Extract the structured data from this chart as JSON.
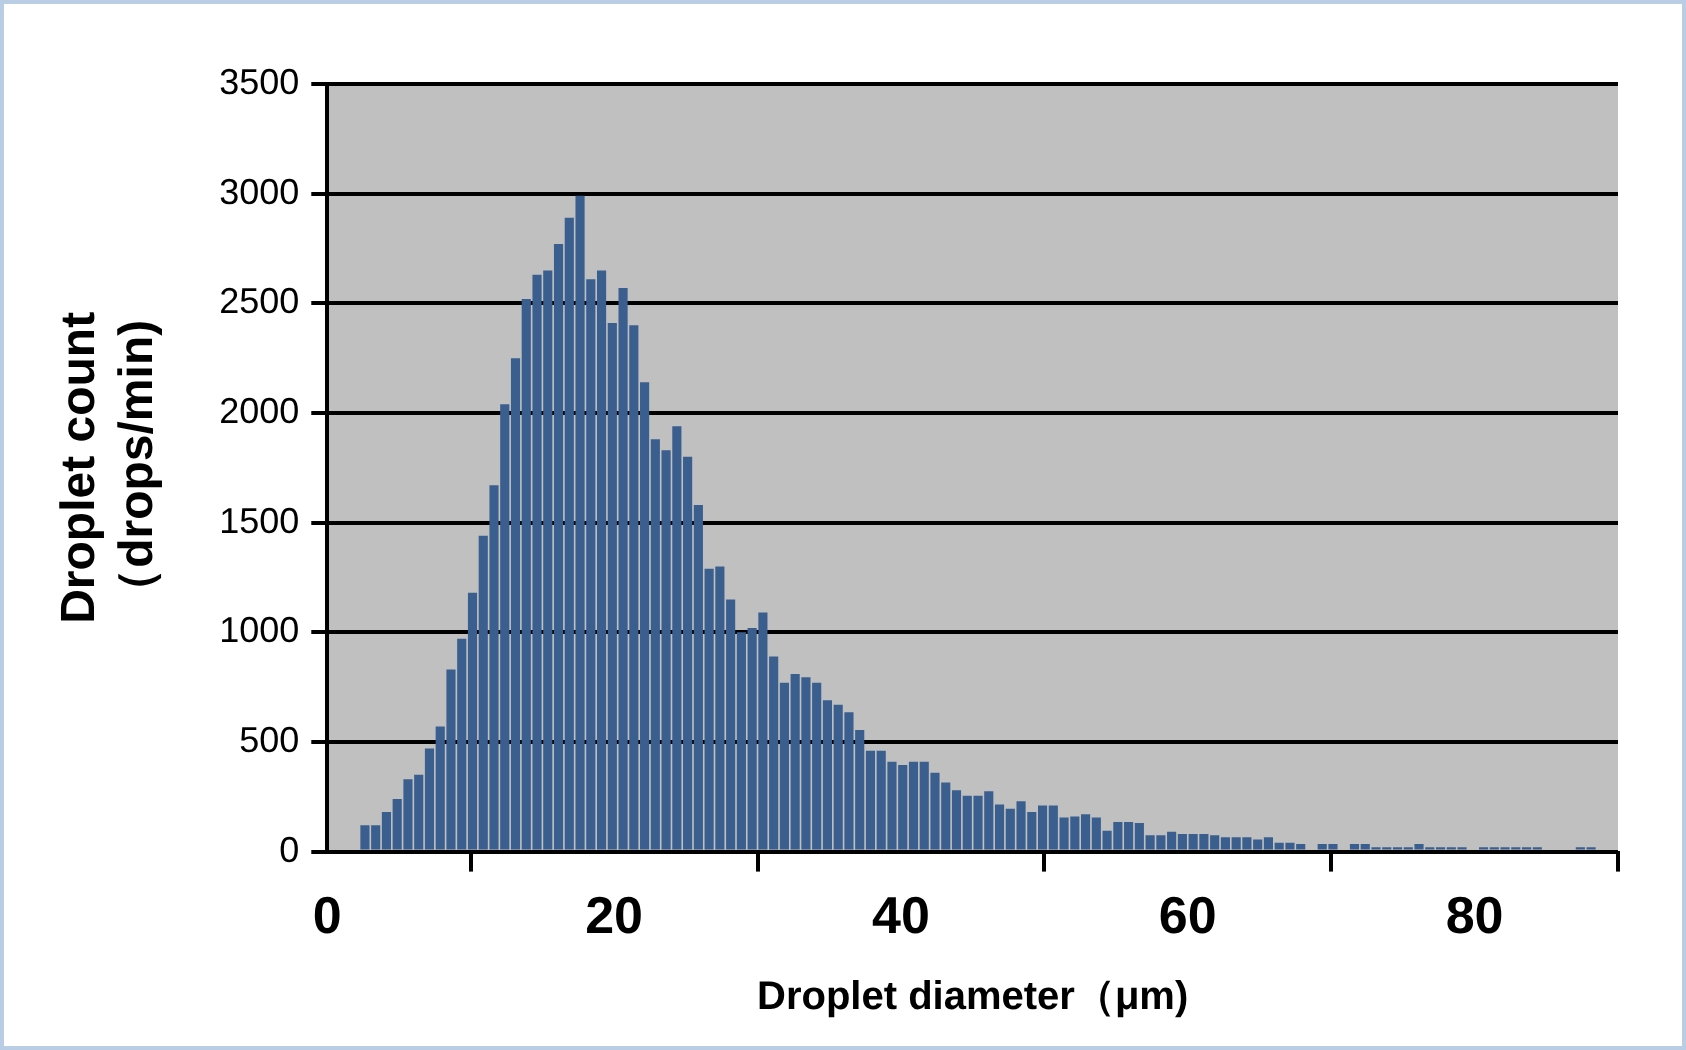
{
  "chart_data": {
    "type": "histogram",
    "xlabel": "Droplet diameter（μm)",
    "ylabel": "Droplet count\n（drops/min)",
    "bins": [
      1.5,
      2.25,
      3,
      3.75,
      4.5,
      5.25,
      6,
      6.75,
      7.5,
      8.25,
      9,
      9.75,
      10.5,
      11.25,
      12,
      12.75,
      13.5,
      14.25,
      15,
      15.75,
      16.5,
      17.25,
      18,
      18.75,
      19.5,
      20.25,
      21,
      21.75,
      22.5,
      23.25,
      24,
      24.75,
      25.5,
      26.25,
      27,
      27.75,
      28.5,
      29.25,
      30,
      30.75,
      31.5,
      32.25,
      33,
      33.75,
      34.5,
      35.25,
      36,
      36.75,
      37.5,
      38.25,
      39,
      39.75,
      40.5,
      41.25,
      42,
      42.75,
      43.5,
      44.25,
      45,
      45.75,
      46.5,
      47.25,
      48,
      48.75,
      49.5,
      50.25,
      51,
      51.75,
      52.5,
      53.25,
      54,
      54.75,
      55.5,
      56.25,
      57,
      57.75,
      58.5,
      59.25,
      60,
      60.75,
      61.5,
      62.25,
      63,
      63.75,
      64.5,
      65.25,
      66,
      66.75,
      67.5,
      68.25,
      69,
      69.75,
      70.5,
      71.25,
      72,
      72.75,
      73.5,
      74.25,
      75,
      75.75,
      76.5,
      77.25,
      78,
      78.75,
      79.5,
      80.25,
      81,
      81.75,
      82.5,
      83.25,
      84,
      84.75,
      85.5,
      86.25,
      87,
      87.75,
      88.5
    ],
    "values": [
      10,
      120,
      120,
      180,
      240,
      330,
      350,
      470,
      570,
      830,
      970,
      1180,
      1440,
      1670,
      2040,
      2250,
      2520,
      2630,
      2650,
      2770,
      2890,
      2990,
      2610,
      2650,
      2410,
      2570,
      2400,
      2140,
      1880,
      1830,
      1940,
      1800,
      1580,
      1290,
      1300,
      1150,
      1000,
      1020,
      1090,
      890,
      770,
      810,
      795,
      770,
      690,
      670,
      635,
      555,
      460,
      460,
      410,
      395,
      410,
      410,
      360,
      315,
      280,
      255,
      255,
      275,
      215,
      195,
      230,
      180,
      210,
      210,
      155,
      160,
      170,
      155,
      95,
      135,
      135,
      130,
      75,
      75,
      90,
      80,
      80,
      80,
      75,
      65,
      65,
      65,
      55,
      65,
      40,
      40,
      35,
      10,
      35,
      35,
      10,
      35,
      35,
      20,
      20,
      20,
      20,
      35,
      20,
      20,
      20,
      20,
      0,
      20,
      20,
      20,
      20,
      20,
      20,
      0,
      0,
      0,
      20,
      20
    ],
    "color": "#3a5f8f",
    "xlim": [
      0,
      90
    ],
    "xticks": [
      0,
      20,
      40,
      60,
      80
    ],
    "ylim": [
      0,
      3500
    ],
    "yticks": [
      0,
      500,
      1000,
      1500,
      2000,
      2500,
      3000,
      3500
    ],
    "grid": "y",
    "legend": false
  }
}
